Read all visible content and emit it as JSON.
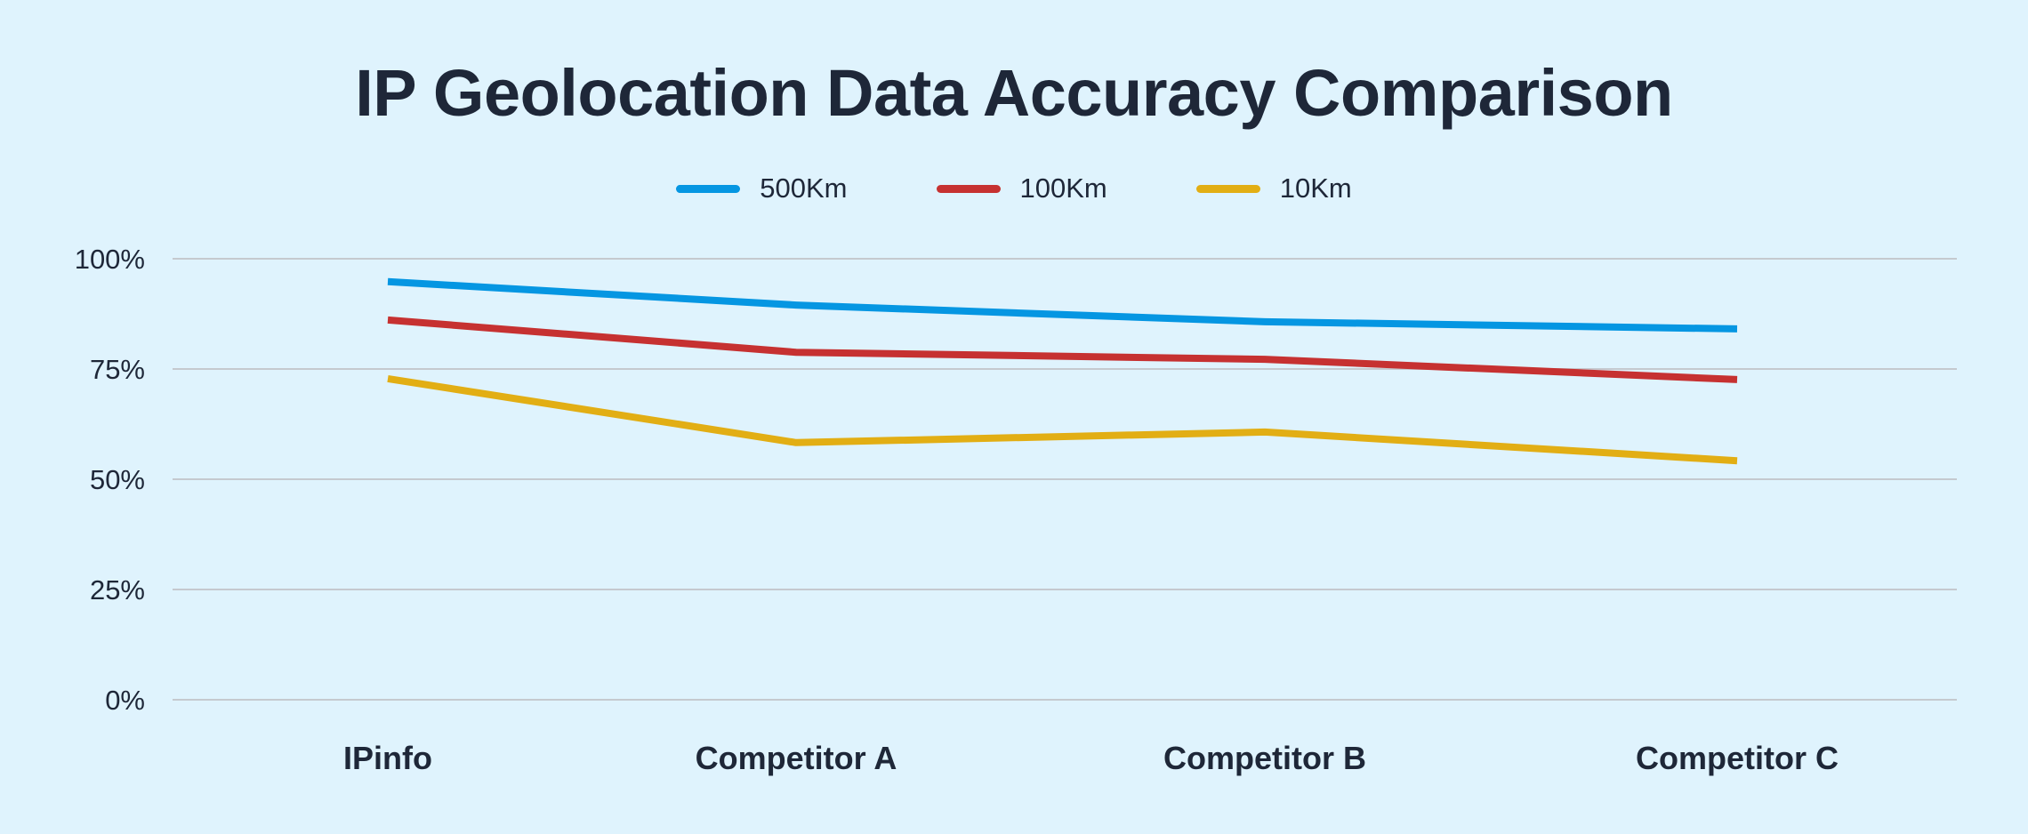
{
  "title": "IP Geolocation Data Accuracy Comparison",
  "legend": [
    {
      "label": "500Km",
      "color": "#0596e2"
    },
    {
      "label": "100Km",
      "color": "#c63131"
    },
    {
      "label": "10Km",
      "color": "#e2ae14"
    }
  ],
  "colors": {
    "background": "#dff3fd",
    "text": "#1e2738",
    "gridline": "#c5c9cf"
  },
  "chart_data": {
    "type": "line",
    "title": "IP Geolocation Data Accuracy Comparison",
    "xlabel": "",
    "ylabel": "",
    "categories": [
      "IPinfo",
      "Competitor A",
      "Competitor B",
      "Competitor C"
    ],
    "series": [
      {
        "name": "500Km",
        "color": "#0596e2",
        "values": [
          94.8,
          89.5,
          85.7,
          84.1
        ]
      },
      {
        "name": "100Km",
        "color": "#c63131",
        "values": [
          86.1,
          78.8,
          77.2,
          72.6
        ]
      },
      {
        "name": "10Km",
        "color": "#e2ae14",
        "values": [
          72.8,
          58.3,
          60.7,
          54.2
        ]
      }
    ],
    "yticks": [
      "0%",
      "25%",
      "50%",
      "75%",
      "100%"
    ],
    "ylim": [
      0,
      100
    ],
    "grid": true,
    "legend_position": "top"
  }
}
